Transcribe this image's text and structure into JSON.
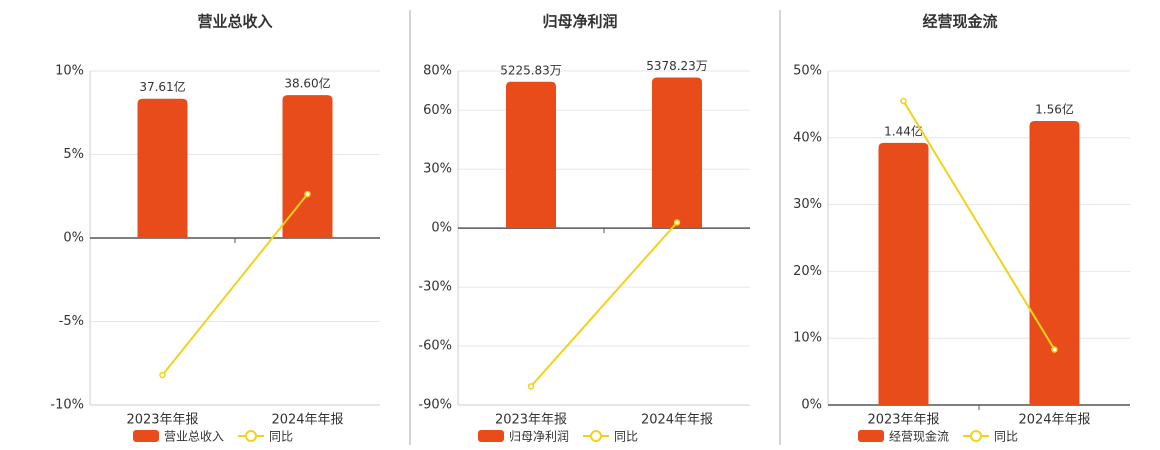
{
  "chart_data": [
    {
      "type": "bar",
      "title": "营业总收入",
      "categories": [
        "2023年年报",
        "2024年年报"
      ],
      "series": [
        {
          "name": "营业总收入",
          "color": "#e84c1b",
          "type": "bar",
          "axis": "y2",
          "values": [
            37.61,
            38.6
          ],
          "value_labels": [
            "37.61亿",
            "38.60亿"
          ]
        },
        {
          "name": "同比",
          "color": "#f2d21b",
          "type": "line",
          "values": [
            -8.2,
            2.63
          ]
        }
      ],
      "ylim": [
        -10,
        10
      ],
      "yticks": [
        {
          "value": -10,
          "label": "-10%"
        },
        {
          "value": -5,
          "label": "-5%"
        },
        {
          "value": 0,
          "label": "0%"
        },
        {
          "value": 5,
          "label": "5%"
        },
        {
          "value": 10,
          "label": "10%"
        }
      ],
      "y2lim": [
        -45.1,
        45.1
      ],
      "grid": true
    },
    {
      "type": "bar",
      "title": "归母净利润",
      "categories": [
        "2023年年报",
        "2024年年报"
      ],
      "series": [
        {
          "name": "归母净利润",
          "color": "#e84c1b",
          "type": "bar",
          "axis": "y2",
          "values": [
            5225.83,
            5378.23
          ],
          "value_labels": [
            "5225.83万",
            "5378.23万"
          ]
        },
        {
          "name": "同比",
          "color": "#f2d21b",
          "type": "line",
          "values": [
            -80.5,
            2.9
          ]
        }
      ],
      "ylim": [
        -90,
        80
      ],
      "yticks": [
        {
          "value": -90,
          "label": "-90%"
        },
        {
          "value": -60,
          "label": "-60%"
        },
        {
          "value": -30,
          "label": "-30%"
        },
        {
          "value": 0,
          "label": "0%"
        },
        {
          "value": 30,
          "label": "30%"
        },
        {
          "value": 60,
          "label": "60%"
        },
        {
          "value": 80,
          "label": "80%"
        }
      ],
      "y2lim": [
        -6320,
        5610
      ],
      "grid": true
    },
    {
      "type": "bar",
      "title": "经营现金流",
      "categories": [
        "2023年年报",
        "2024年年报"
      ],
      "series": [
        {
          "name": "经营现金流",
          "color": "#e84c1b",
          "type": "bar",
          "axis": "y2",
          "values": [
            1.44,
            1.56
          ],
          "value_labels": [
            "1.44亿",
            "1.56亿"
          ]
        },
        {
          "name": "同比",
          "color": "#f2d21b",
          "type": "line",
          "values": [
            45.5,
            8.3
          ]
        }
      ],
      "ylim": [
        0,
        50
      ],
      "yticks": [
        {
          "value": 0,
          "label": "0%"
        },
        {
          "value": 10,
          "label": "10%"
        },
        {
          "value": 20,
          "label": "20%"
        },
        {
          "value": 30,
          "label": "30%"
        },
        {
          "value": 40,
          "label": "40%"
        },
        {
          "value": 50,
          "label": "50%"
        }
      ],
      "y2lim": [
        0,
        1.835
      ],
      "grid": true
    }
  ]
}
